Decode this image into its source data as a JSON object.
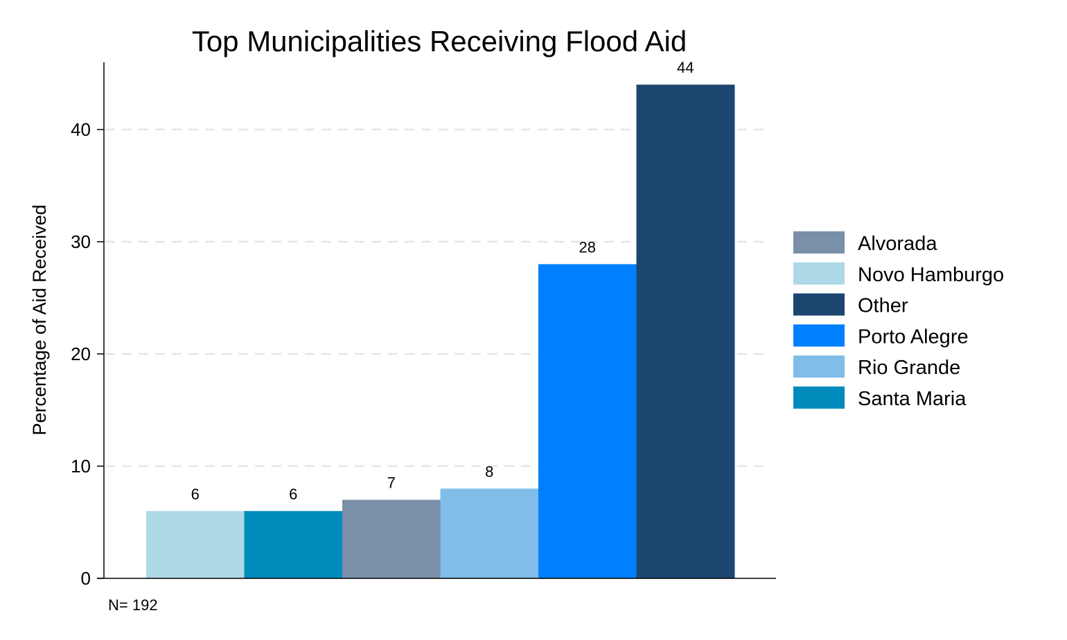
{
  "chart_data": {
    "type": "bar",
    "title": "Top Municipalities Receiving Flood Aid",
    "xlabel": "",
    "ylabel": "Percentage of Aid Received",
    "ylim": [
      0,
      46
    ],
    "yticks": [
      0,
      10,
      20,
      30,
      40
    ],
    "grid": "horizontal dashed",
    "legend_position": "right",
    "note": "N= 192",
    "bars": [
      {
        "category": "Novo Hamburgo",
        "value": 6,
        "label": "6",
        "color": "#add8e6"
      },
      {
        "category": "Santa Maria",
        "value": 6,
        "label": "6",
        "color": "#008bbc"
      },
      {
        "category": "Alvorada",
        "value": 7,
        "label": "7",
        "color": "#7a90a8"
      },
      {
        "category": "Rio Grande",
        "value": 8,
        "label": "8",
        "color": "#80bde8"
      },
      {
        "category": "Porto Alegre",
        "value": 28,
        "label": "28",
        "color": "#0080ff"
      },
      {
        "category": "Other",
        "value": 44,
        "label": "44",
        "color": "#1c466f"
      }
    ],
    "legend": [
      {
        "label": "Alvorada",
        "color": "#7a90a8"
      },
      {
        "label": "Novo Hamburgo",
        "color": "#add8e6"
      },
      {
        "label": "Other",
        "color": "#1c466f"
      },
      {
        "label": "Porto Alegre",
        "color": "#0080ff"
      },
      {
        "label": "Rio Grande",
        "color": "#80bde8"
      },
      {
        "label": "Santa Maria",
        "color": "#008bbc"
      }
    ]
  }
}
